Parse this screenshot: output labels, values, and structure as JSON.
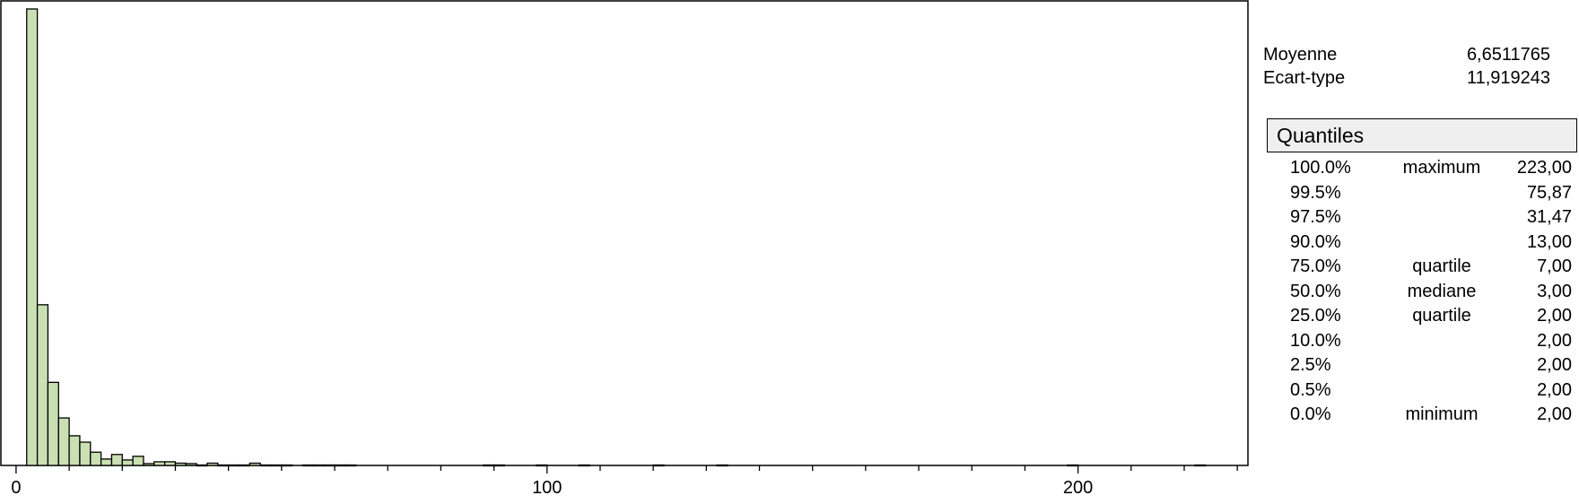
{
  "chart_data": {
    "type": "bar",
    "subtype": "histogram",
    "bin_width": 2,
    "bins": [
      {
        "start": 2,
        "end": 4,
        "count": 1000
      },
      {
        "start": 4,
        "end": 6,
        "count": 352
      },
      {
        "start": 6,
        "end": 8,
        "count": 182
      },
      {
        "start": 8,
        "end": 10,
        "count": 104
      },
      {
        "start": 10,
        "end": 12,
        "count": 65
      },
      {
        "start": 12,
        "end": 14,
        "count": 51
      },
      {
        "start": 14,
        "end": 16,
        "count": 29
      },
      {
        "start": 16,
        "end": 18,
        "count": 14
      },
      {
        "start": 18,
        "end": 20,
        "count": 24
      },
      {
        "start": 20,
        "end": 22,
        "count": 12
      },
      {
        "start": 22,
        "end": 24,
        "count": 20
      },
      {
        "start": 24,
        "end": 26,
        "count": 4
      },
      {
        "start": 26,
        "end": 28,
        "count": 8
      },
      {
        "start": 28,
        "end": 30,
        "count": 8
      },
      {
        "start": 30,
        "end": 32,
        "count": 5
      },
      {
        "start": 32,
        "end": 34,
        "count": 4
      },
      {
        "start": 34,
        "end": 36,
        "count": 1
      },
      {
        "start": 36,
        "end": 38,
        "count": 5
      },
      {
        "start": 38,
        "end": 40,
        "count": 1
      },
      {
        "start": 40,
        "end": 42,
        "count": 1
      },
      {
        "start": 42,
        "end": 44,
        "count": 1
      },
      {
        "start": 44,
        "end": 46,
        "count": 5
      },
      {
        "start": 46,
        "end": 48,
        "count": 1
      },
      {
        "start": 48,
        "end": 50,
        "count": 1
      },
      {
        "start": 50,
        "end": 52,
        "count": 1
      },
      {
        "start": 54,
        "end": 56,
        "count": 1
      },
      {
        "start": 56,
        "end": 58,
        "count": 1
      },
      {
        "start": 58,
        "end": 60,
        "count": 1
      },
      {
        "start": 60,
        "end": 62,
        "count": 1
      },
      {
        "start": 62,
        "end": 64,
        "count": 1
      },
      {
        "start": 88,
        "end": 90,
        "count": 1
      },
      {
        "start": 90,
        "end": 92,
        "count": 1
      },
      {
        "start": 98,
        "end": 100,
        "count": 1
      },
      {
        "start": 106,
        "end": 108,
        "count": 1
      },
      {
        "start": 120,
        "end": 122,
        "count": 1
      },
      {
        "start": 132,
        "end": 134,
        "count": 1
      },
      {
        "start": 198,
        "end": 200,
        "count": 1
      },
      {
        "start": 222,
        "end": 224,
        "count": 1
      }
    ],
    "xlim": [
      -1,
      232
    ],
    "ylim": [
      0,
      1000
    ],
    "xticks": [
      0,
      100,
      200
    ],
    "xtick_labels": [
      "0",
      "100",
      "200"
    ],
    "minor_tick_step": 10,
    "title": "",
    "xlabel": "",
    "ylabel": "",
    "bar_fill": "#c9e0b2",
    "bar_stroke": "#000000"
  },
  "summary": {
    "mean_label": "Moyenne",
    "mean_value": "6,6511765",
    "std_label": "Ecart-type",
    "std_value": "11,919243"
  },
  "quantiles": {
    "title": "Quantiles",
    "rows": [
      {
        "pct": "100.0%",
        "name": "maximum",
        "value": "223,00"
      },
      {
        "pct": "99.5%",
        "name": "",
        "value": "75,87"
      },
      {
        "pct": "97.5%",
        "name": "",
        "value": "31,47"
      },
      {
        "pct": "90.0%",
        "name": "",
        "value": "13,00"
      },
      {
        "pct": "75.0%",
        "name": "quartile",
        "value": "7,00"
      },
      {
        "pct": "50.0%",
        "name": "mediane",
        "value": "3,00"
      },
      {
        "pct": "25.0%",
        "name": "quartile",
        "value": "2,00"
      },
      {
        "pct": "10.0%",
        "name": "",
        "value": "2,00"
      },
      {
        "pct": "2.5%",
        "name": "",
        "value": "2,00"
      },
      {
        "pct": "0.5%",
        "name": "",
        "value": "2,00"
      },
      {
        "pct": "0.0%",
        "name": "minimum",
        "value": "2,00"
      }
    ]
  }
}
